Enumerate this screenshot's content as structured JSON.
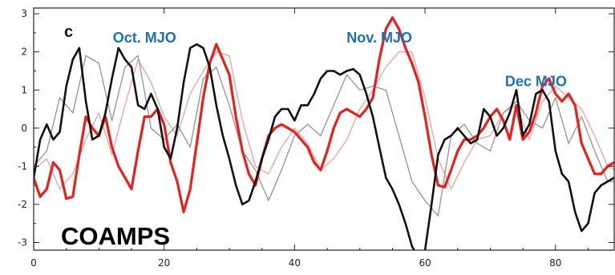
{
  "chart_data": {
    "type": "line",
    "panel_label": "c",
    "model_label": "COAMPS",
    "annotations": [
      {
        "text": "Oct. MJO",
        "x": 17,
        "y": 2.25
      },
      {
        "text": "Nov. MJO",
        "x": 53,
        "y": 2.25
      },
      {
        "text": "Dec MJO",
        "x": 77,
        "y": 1.1
      }
    ],
    "xlim": [
      0,
      89
    ],
    "ylim": [
      -3.2,
      3.15
    ],
    "xticks": [
      "0",
      "20",
      "40",
      "60",
      "80"
    ],
    "xtick_values": [
      0,
      20,
      40,
      60,
      80
    ],
    "yticks": [
      "3",
      "2",
      "1",
      "0",
      "-1",
      "-2",
      "-3"
    ],
    "ytick_values": [
      3,
      2,
      1,
      0,
      -1,
      -2,
      -3
    ],
    "grid": false,
    "series": [
      {
        "color": "#f4a3a3",
        "width": 1.4,
        "x": [
          0,
          2,
          4,
          6,
          8,
          10,
          12,
          14,
          16,
          18,
          20,
          22,
          24,
          26,
          28,
          30,
          32,
          34,
          36,
          38,
          40,
          42,
          44,
          46,
          48,
          50,
          52,
          54,
          56,
          58,
          60,
          62,
          64,
          66,
          68,
          70,
          72,
          74,
          76,
          78,
          80,
          82,
          84,
          86,
          88,
          89
        ],
        "y": [
          -1.1,
          -0.8,
          -1.6,
          -1.2,
          -0.3,
          0.4,
          -0.7,
          0.6,
          1.8,
          1.2,
          0.3,
          -0.2,
          0.9,
          1.5,
          2.0,
          1.9,
          0.2,
          -1.0,
          -1.2,
          -0.5,
          0.0,
          -0.4,
          -1.1,
          -0.8,
          -0.3,
          0.5,
          1.0,
          1.6,
          2.0,
          2.0,
          0.8,
          -0.8,
          -1.6,
          -0.9,
          -0.3,
          -0.2,
          0.4,
          0.6,
          -0.3,
          0.7,
          1.1,
          0.8,
          0.5,
          -0.2,
          -1.0,
          -1.1
        ]
      },
      {
        "color": "#999999",
        "width": 1.4,
        "x": [
          0,
          2,
          4,
          6,
          8,
          10,
          12,
          14,
          16,
          18,
          20,
          22,
          24,
          26,
          28,
          30,
          32,
          34,
          36,
          38,
          40,
          42,
          44,
          46,
          48,
          50,
          52,
          54,
          56,
          58,
          60,
          62,
          64,
          66,
          68,
          70,
          72,
          74,
          76,
          78,
          80,
          82,
          84,
          86,
          88,
          89
        ],
        "y": [
          -1.0,
          -0.6,
          0.8,
          0.4,
          1.9,
          1.7,
          0.2,
          1.6,
          1.9,
          0.0,
          -0.3,
          0.1,
          -0.5,
          1.3,
          1.6,
          0.6,
          -0.6,
          -1.1,
          -1.9,
          -1.1,
          -0.2,
          0.1,
          -0.2,
          0.6,
          1.4,
          1.0,
          1.1,
          1.0,
          -0.2,
          -1.4,
          -1.9,
          -2.3,
          -0.2,
          0.1,
          -0.4,
          -0.6,
          0.4,
          0.7,
          0.2,
          0.0,
          0.8,
          -0.4,
          0.3,
          -0.6,
          -1.4,
          -1.4
        ]
      },
      {
        "color": "#e8201c",
        "width": 3.2,
        "x": [
          0,
          1,
          2,
          3,
          4,
          5,
          6,
          7,
          8,
          9,
          10,
          11,
          12,
          13,
          14,
          15,
          16,
          17,
          18,
          19,
          20,
          21,
          22,
          23,
          24,
          25,
          26,
          27,
          28,
          29,
          30,
          31,
          32,
          33,
          34,
          35,
          36,
          37,
          38,
          39,
          40,
          41,
          42,
          43,
          44,
          45,
          46,
          47,
          48,
          49,
          50,
          51,
          52,
          53,
          54,
          55,
          56,
          57,
          58,
          59,
          60,
          61,
          62,
          63,
          64,
          65,
          66,
          67,
          68,
          69,
          70,
          71,
          72,
          73,
          74,
          75,
          76,
          77,
          78,
          79,
          80,
          81,
          82,
          83,
          84,
          85,
          86,
          87,
          88,
          89
        ],
        "y": [
          -1.3,
          -1.8,
          -1.6,
          -0.9,
          -1.1,
          -1.85,
          -1.8,
          -0.7,
          0.3,
          0.0,
          -0.2,
          0.3,
          -0.5,
          -1.0,
          -1.3,
          -1.6,
          -0.6,
          0.3,
          0.3,
          0.5,
          0.1,
          -0.9,
          -1.4,
          -2.2,
          -1.6,
          -0.4,
          0.8,
          1.7,
          2.2,
          1.8,
          1.4,
          0.3,
          -0.6,
          -1.2,
          -1.5,
          -0.8,
          -0.2,
          0.0,
          0.1,
          0.0,
          -0.1,
          -0.3,
          -0.5,
          -0.9,
          -1.1,
          -0.6,
          0.0,
          0.4,
          0.5,
          0.4,
          0.3,
          0.5,
          0.8,
          1.8,
          2.6,
          2.9,
          2.6,
          2.1,
          1.7,
          1.2,
          0.3,
          -0.7,
          -1.5,
          -1.55,
          -1.1,
          -0.6,
          -0.3,
          -0.3,
          -0.2,
          0.0,
          0.3,
          0.5,
          0.2,
          -0.3,
          0.6,
          -0.3,
          -0.1,
          0.4,
          1.1,
          1.3,
          0.9,
          0.7,
          0.9,
          0.6,
          -0.4,
          -0.8,
          -1.2,
          -1.2,
          -1.0,
          -0.9
        ]
      },
      {
        "color": "#111111",
        "width": 2.6,
        "x": [
          0,
          1,
          2,
          3,
          4,
          5,
          6,
          7,
          8,
          9,
          10,
          11,
          12,
          13,
          14,
          15,
          16,
          17,
          18,
          19,
          20,
          21,
          22,
          23,
          24,
          25,
          26,
          27,
          28,
          29,
          30,
          31,
          32,
          33,
          34,
          35,
          36,
          37,
          38,
          39,
          40,
          41,
          42,
          43,
          44,
          45,
          46,
          47,
          48,
          49,
          50,
          51,
          52,
          53,
          54,
          55,
          56,
          57,
          58,
          59,
          60,
          61,
          62,
          63,
          64,
          65,
          66,
          67,
          68,
          69,
          70,
          71,
          72,
          73,
          74,
          75,
          76,
          77,
          78,
          79,
          80,
          81,
          82,
          83,
          84,
          85,
          86,
          87,
          88,
          89
        ],
        "y": [
          -1.3,
          -0.3,
          0.1,
          -0.3,
          -0.1,
          1.1,
          1.8,
          2.1,
          0.7,
          -0.3,
          -0.2,
          0.4,
          1.3,
          2.1,
          1.8,
          1.6,
          0.6,
          0.5,
          0.9,
          0.5,
          -0.5,
          -0.8,
          0.0,
          1.2,
          2.1,
          2.2,
          2.1,
          1.6,
          0.6,
          -0.2,
          -0.8,
          -1.5,
          -2.0,
          -1.9,
          -1.4,
          -0.8,
          -0.3,
          0.3,
          0.5,
          0.5,
          0.2,
          0.6,
          0.6,
          0.9,
          1.3,
          1.5,
          1.5,
          1.4,
          1.5,
          1.55,
          1.4,
          0.9,
          0.3,
          -0.5,
          -1.3,
          -1.6,
          -2.0,
          -2.5,
          -3.1,
          -3.4,
          -3.2,
          -2.0,
          -0.7,
          -0.3,
          -0.2,
          0.0,
          -0.2,
          -0.4,
          -0.3,
          0.5,
          0.3,
          -0.2,
          0.0,
          0.4,
          1.0,
          -0.2,
          0.1,
          0.9,
          1.0,
          0.7,
          -0.6,
          -1.2,
          -1.4,
          -2.2,
          -2.7,
          -2.5,
          -1.7,
          -1.5,
          -1.4,
          -1.3
        ]
      }
    ]
  }
}
